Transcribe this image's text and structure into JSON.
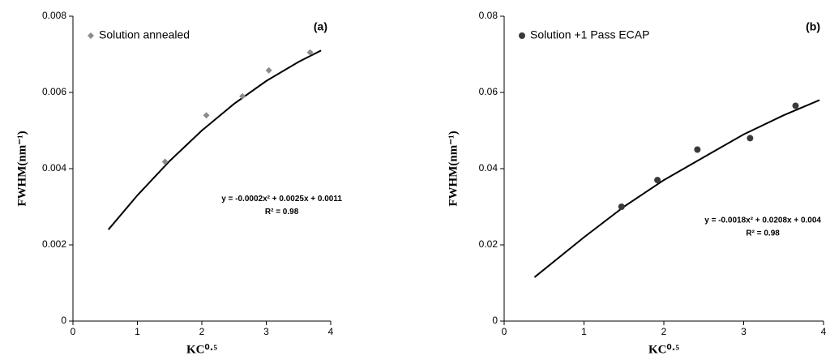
{
  "chart_data": [
    {
      "type": "scatter",
      "panel_label": "(a)",
      "x_label": "KC⁰·⁵",
      "y_label": "FWHM(nm⁻¹)",
      "xlim": [
        0,
        4
      ],
      "xticks": [
        0,
        1,
        2,
        3,
        4
      ],
      "ylim": [
        0,
        0.008
      ],
      "yticks": [
        0,
        0.002,
        0.004,
        0.006,
        0.008
      ],
      "series": [
        {
          "name": "Solution annealed",
          "color": "#8c8c8c",
          "marker": "diamond",
          "x": [
            1.43,
            2.07,
            2.63,
            3.04,
            3.68
          ],
          "values": [
            0.00418,
            0.0054,
            0.0059,
            0.00658,
            0.00705
          ]
        }
      ],
      "trendline": {
        "color": "#000000",
        "x": [
          0.55,
          1,
          1.5,
          2,
          2.5,
          3,
          3.5,
          3.85
        ],
        "values": [
          0.0024,
          0.0033,
          0.0042,
          0.005,
          0.0057,
          0.0063,
          0.0068,
          0.0071
        ]
      },
      "annotations": [
        "y = -0.0002x² + 0.0025x + 0.0011",
        "R² = 0.98"
      ]
    },
    {
      "type": "scatter",
      "panel_label": "(b)",
      "x_label": "KC⁰·⁵",
      "y_label": "FWHM(nm⁻¹)",
      "xlim": [
        0,
        4
      ],
      "xticks": [
        0,
        1,
        2,
        3,
        4
      ],
      "ylim": [
        0,
        0.08
      ],
      "yticks": [
        0,
        0.02,
        0.04,
        0.06,
        0.08
      ],
      "series": [
        {
          "name": "Solution +1 Pass ECAP",
          "color": "#3a3a3a",
          "marker": "circle",
          "x": [
            1.47,
            1.92,
            2.42,
            3.08,
            3.65
          ],
          "values": [
            0.03,
            0.037,
            0.045,
            0.048,
            0.0565
          ]
        }
      ],
      "trendline": {
        "color": "#000000",
        "x": [
          0.38,
          1,
          1.5,
          2,
          2.5,
          3,
          3.5,
          3.95
        ],
        "values": [
          0.0115,
          0.022,
          0.03,
          0.037,
          0.043,
          0.049,
          0.054,
          0.058
        ]
      },
      "annotations": [
        "y = -0.0018x² + 0.0208x + 0.004",
        "R² = 0.98"
      ]
    }
  ]
}
